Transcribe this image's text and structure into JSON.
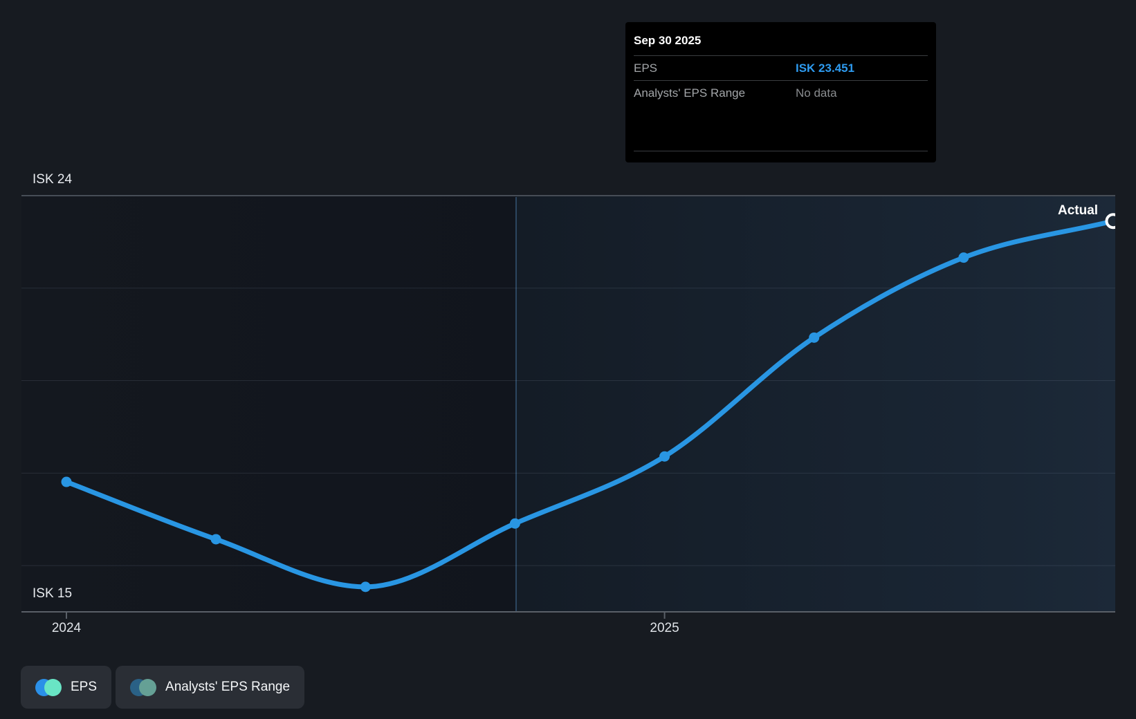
{
  "tooltip": {
    "title": "Sep 30 2025",
    "rows": [
      {
        "label": "EPS",
        "value": "ISK 23.451",
        "style": "blue"
      },
      {
        "label": "Analysts' EPS Range",
        "value": "No data",
        "style": "muted"
      }
    ]
  },
  "axis": {
    "y_top_label": "ISK 24",
    "y_bottom_label": "ISK 15",
    "x_labels": [
      "2024",
      "2025"
    ]
  },
  "annotations": {
    "actual_label": "Actual"
  },
  "legend": [
    {
      "label": "EPS",
      "colors": [
        "#2B90E8",
        "#69E5C5"
      ]
    },
    {
      "label": "Analysts' EPS Range",
      "colors": [
        "#2A6186",
        "#65A095"
      ]
    }
  ],
  "colors": {
    "page_bg": "#171B21",
    "line": "#2996E3",
    "tooltip_value_blue": "#2E9BF0",
    "endpoint_ring": "#FFFFFF",
    "divider": "#2C4660",
    "axis_line": "#5A6068",
    "top_gridline": "#474D56",
    "minor_gridline": "rgba(180,195,215,0.13)",
    "highlight_left": "#141C26",
    "highlight_right": "#1C2938"
  },
  "chart_data": {
    "type": "line",
    "title": "",
    "xlabel": "",
    "ylabel": "",
    "series": [
      {
        "name": "EPS",
        "color": "#2996E3",
        "x": [
          "Dec 31 2023",
          "Mar 31 2024",
          "Jun 30 2024",
          "Sep 30 2024",
          "Dec 31 2024",
          "Mar 31 2025",
          "Jun 30 2025",
          "Sep 30 2025"
        ],
        "values": [
          17.81,
          16.57,
          15.54,
          16.91,
          18.36,
          20.93,
          22.66,
          23.451
        ]
      },
      {
        "name": "Analysts' EPS Range",
        "values": [],
        "note": "No data"
      }
    ],
    "ylim": [
      15,
      24
    ],
    "y_gridlines": [
      24,
      22,
      20,
      18,
      16
    ],
    "y_axis_labels_shown": [
      "ISK 24",
      "ISK 15"
    ],
    "x_ticks": [
      {
        "label": "2024",
        "point_index": 0
      },
      {
        "label": "2025",
        "point_index": 4
      }
    ],
    "divider_at_point_index": 3,
    "highlighted_region": "right of divider (trailing 12 months, ends at Actual)",
    "end_annotation": "Actual",
    "grid": "horizontal gridlines only",
    "legend_position": "bottom-left",
    "legend_entries": [
      "EPS",
      "Analysts' EPS Range"
    ]
  }
}
